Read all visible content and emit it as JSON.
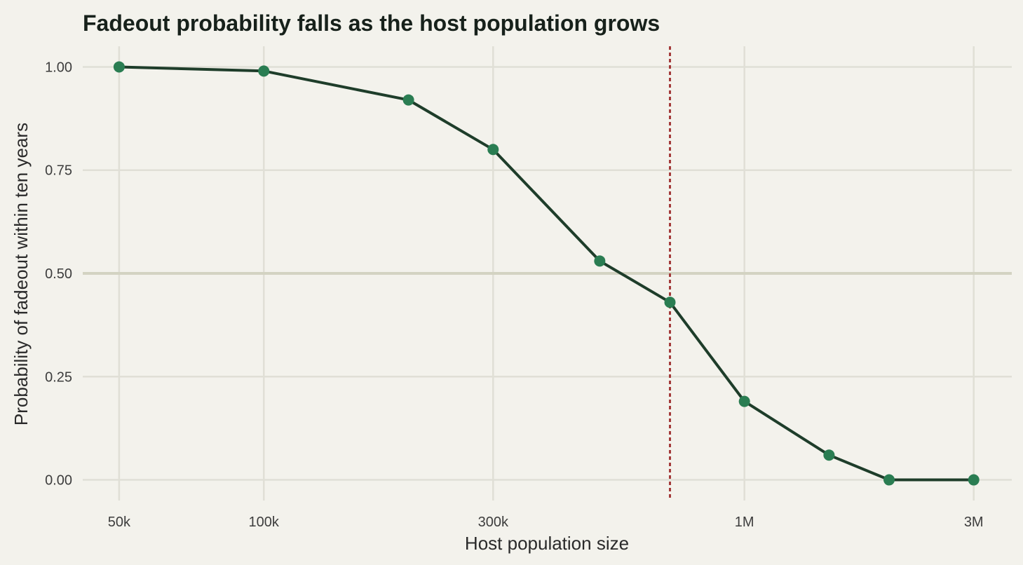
{
  "chart_data": {
    "type": "line",
    "title": "Fadeout probability falls as the host population grows",
    "xlabel": "Host population size",
    "ylabel": "Probability of fadeout within ten years",
    "x_scale": "log",
    "xlim": [
      42000,
      3600000
    ],
    "ylim": [
      -0.05,
      1.05
    ],
    "x_ticks": [
      {
        "value": 50000,
        "label": "50k"
      },
      {
        "value": 100000,
        "label": "100k"
      },
      {
        "value": 300000,
        "label": "300k"
      },
      {
        "value": 1000000,
        "label": "1M"
      },
      {
        "value": 3000000,
        "label": "3M"
      }
    ],
    "y_ticks": [
      {
        "value": 0.0,
        "label": "0.00"
      },
      {
        "value": 0.25,
        "label": "0.25"
      },
      {
        "value": 0.5,
        "label": "0.50"
      },
      {
        "value": 0.75,
        "label": "0.75"
      },
      {
        "value": 1.0,
        "label": "1.00"
      }
    ],
    "series": [
      {
        "x": [
          50000,
          100000,
          200000,
          300000,
          500000,
          700000,
          1000000,
          1500000,
          2000000,
          3000000
        ],
        "y": [
          1.0,
          0.99,
          0.92,
          0.8,
          0.53,
          0.43,
          0.19,
          0.06,
          0.0,
          0.0
        ],
        "color": "#2a7d52",
        "line_color": "#1e3d2a"
      }
    ],
    "reference_lines": [
      {
        "axis": "y",
        "value": 0.5,
        "style": "solid",
        "color": "#d3d3c2"
      },
      {
        "axis": "x",
        "value": 700000,
        "style": "dotted",
        "color": "#a33a3a"
      }
    ],
    "grid": true,
    "background": "#f3f2ec",
    "grid_color": "#e0dfd6"
  }
}
